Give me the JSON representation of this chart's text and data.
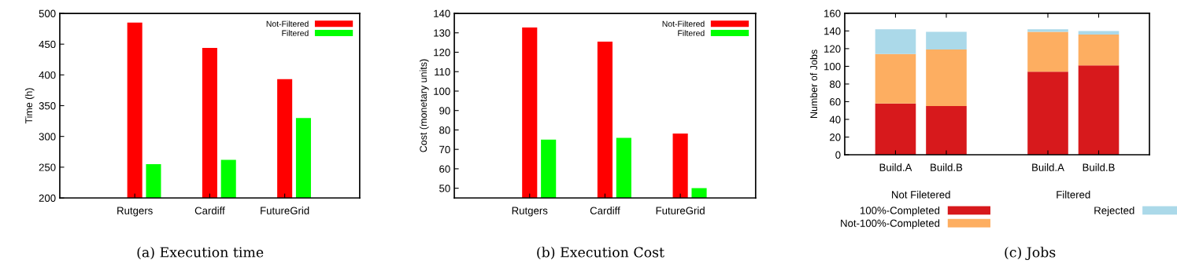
{
  "chart_data": [
    {
      "type": "bar",
      "title": "(a) Execution time",
      "ylabel": "Time (h)",
      "categories": [
        "Rutgers",
        "Cardiff",
        "FutureGrid"
      ],
      "ylim": [
        200,
        500
      ],
      "yticks": [
        200,
        250,
        300,
        350,
        400,
        450,
        500
      ],
      "legend": "top right",
      "grid": false,
      "series": [
        {
          "name": "Not-Filtered",
          "color": "#ff0000",
          "values": [
            485,
            444,
            393
          ]
        },
        {
          "name": "Filtered",
          "color": "#00ff00",
          "values": [
            255,
            262,
            330
          ]
        }
      ]
    },
    {
      "type": "bar",
      "title": "(b) Execution Cost",
      "ylabel": "Cost (monetary units)",
      "categories": [
        "Rutgers",
        "Cardiff",
        "FutureGrid"
      ],
      "ylim": [
        45,
        140
      ],
      "yticks": [
        50,
        60,
        70,
        80,
        90,
        100,
        110,
        120,
        130,
        140
      ],
      "legend": "top right",
      "grid": false,
      "series": [
        {
          "name": "Not-Filtered",
          "color": "#ff0000",
          "values": [
            132.7,
            125.5,
            78.2
          ]
        },
        {
          "name": "Filtered",
          "color": "#00ff00",
          "values": [
            75.0,
            75.9,
            50.0
          ]
        }
      ]
    },
    {
      "type": "bar",
      "stacked": true,
      "title": "(c) Jobs",
      "ylabel": "Number of Jobs",
      "categories": [
        "Build.A",
        "Build.B",
        null,
        "Build.A",
        "Build.B"
      ],
      "ylim": [
        0,
        160
      ],
      "yticks": [
        0,
        20,
        40,
        60,
        80,
        100,
        120,
        140,
        160
      ],
      "legend": "bottom",
      "grid": false,
      "annotations": [
        "Not Filetered",
        "Filtered"
      ],
      "series": [
        {
          "name": "100%-Completed",
          "color": "#d7191c",
          "values": [
            58,
            55,
            null,
            94,
            101
          ]
        },
        {
          "name": "Not-100%-Completed",
          "color": "#fdae61",
          "values": [
            56,
            64,
            null,
            45,
            35
          ]
        },
        {
          "name": "Rejected",
          "color": "#abd9e9",
          "values": [
            28,
            20,
            null,
            3,
            4
          ]
        }
      ]
    }
  ]
}
